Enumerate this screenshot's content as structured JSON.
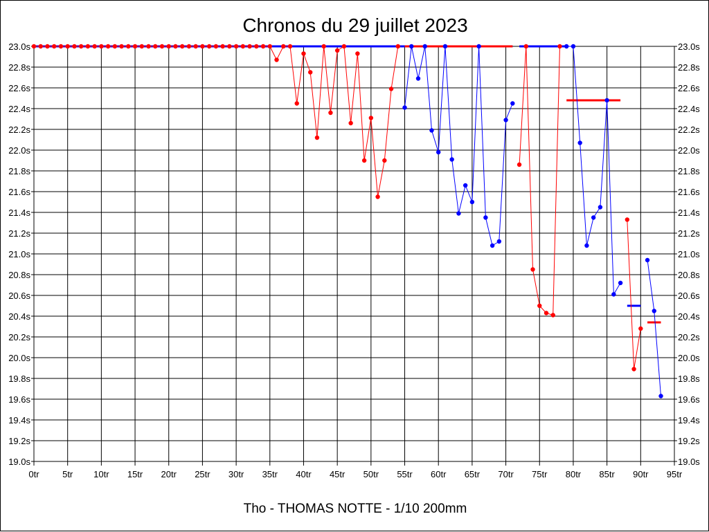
{
  "chart_data": {
    "type": "line",
    "title": "Chronos du 29 juillet 2023",
    "footer": "Tho - THOMAS NOTTE - 1/10 200mm",
    "xlim": [
      0,
      95
    ],
    "ylim": [
      19.0,
      23.0
    ],
    "x_ticks": [
      {
        "value": 0,
        "label": "0tr"
      },
      {
        "value": 5,
        "label": "5tr"
      },
      {
        "value": 10,
        "label": "10tr"
      },
      {
        "value": 15,
        "label": "15tr"
      },
      {
        "value": 20,
        "label": "20tr"
      },
      {
        "value": 25,
        "label": "25tr"
      },
      {
        "value": 30,
        "label": "30tr"
      },
      {
        "value": 35,
        "label": "35tr"
      },
      {
        "value": 40,
        "label": "40tr"
      },
      {
        "value": 45,
        "label": "45tr"
      },
      {
        "value": 50,
        "label": "50tr"
      },
      {
        "value": 55,
        "label": "55tr"
      },
      {
        "value": 60,
        "label": "60tr"
      },
      {
        "value": 65,
        "label": "65tr"
      },
      {
        "value": 70,
        "label": "70tr"
      },
      {
        "value": 75,
        "label": "75tr"
      },
      {
        "value": 80,
        "label": "80tr"
      },
      {
        "value": 85,
        "label": "85tr"
      },
      {
        "value": 90,
        "label": "90tr"
      },
      {
        "value": 95,
        "label": "95tr"
      }
    ],
    "y_ticks": [
      {
        "value": 23.0,
        "label": "23.0s"
      },
      {
        "value": 22.8,
        "label": "22.8s"
      },
      {
        "value": 22.6,
        "label": "22.6s"
      },
      {
        "value": 22.4,
        "label": "22.4s"
      },
      {
        "value": 22.2,
        "label": "22.2s"
      },
      {
        "value": 22.0,
        "label": "22.0s"
      },
      {
        "value": 21.8,
        "label": "21.8s"
      },
      {
        "value": 21.6,
        "label": "21.6s"
      },
      {
        "value": 21.4,
        "label": "21.4s"
      },
      {
        "value": 21.2,
        "label": "21.2s"
      },
      {
        "value": 21.0,
        "label": "21.0s"
      },
      {
        "value": 20.8,
        "label": "20.8s"
      },
      {
        "value": 20.6,
        "label": "20.6s"
      },
      {
        "value": 20.4,
        "label": "20.4s"
      },
      {
        "value": 20.2,
        "label": "20.2s"
      },
      {
        "value": 20.0,
        "label": "20.0s"
      },
      {
        "value": 19.8,
        "label": "19.8s"
      },
      {
        "value": 19.6,
        "label": "19.6s"
      },
      {
        "value": 19.4,
        "label": "19.4s"
      },
      {
        "value": 19.2,
        "label": "19.2s"
      },
      {
        "value": 19.0,
        "label": "19.0s"
      }
    ],
    "grid": true,
    "segments": [
      {
        "color": "#ff0000",
        "points": [
          [
            0,
            23.0
          ],
          [
            1,
            23.0
          ],
          [
            2,
            23.0
          ],
          [
            3,
            23.0
          ],
          [
            4,
            23.0
          ],
          [
            5,
            23.0
          ],
          [
            6,
            23.0
          ],
          [
            7,
            23.0
          ],
          [
            8,
            23.0
          ],
          [
            9,
            23.0
          ],
          [
            10,
            23.0
          ],
          [
            11,
            23.0
          ],
          [
            12,
            23.0
          ],
          [
            13,
            23.0
          ],
          [
            14,
            23.0
          ],
          [
            15,
            23.0
          ],
          [
            16,
            23.0
          ],
          [
            17,
            23.0
          ],
          [
            18,
            23.0
          ],
          [
            19,
            23.0
          ],
          [
            20,
            23.0
          ],
          [
            21,
            23.0
          ],
          [
            22,
            23.0
          ],
          [
            23,
            23.0
          ],
          [
            24,
            23.0
          ],
          [
            25,
            23.0
          ],
          [
            26,
            23.0
          ],
          [
            27,
            23.0
          ],
          [
            28,
            23.0
          ],
          [
            29,
            23.0
          ],
          [
            30,
            23.0
          ],
          [
            31,
            23.0
          ],
          [
            32,
            23.0
          ],
          [
            33,
            23.0
          ],
          [
            34,
            23.0
          ],
          [
            35,
            23.0
          ],
          [
            36,
            22.87
          ],
          [
            37,
            23.0
          ],
          [
            38,
            23.0
          ],
          [
            39,
            22.45
          ],
          [
            40,
            22.93
          ],
          [
            41,
            22.75
          ],
          [
            42,
            22.12
          ],
          [
            43,
            23.0
          ],
          [
            44,
            22.36
          ],
          [
            45,
            22.96
          ],
          [
            46,
            23.0
          ],
          [
            47,
            22.26
          ],
          [
            48,
            22.93
          ],
          [
            49,
            21.9
          ],
          [
            50,
            22.31
          ],
          [
            51,
            21.55
          ],
          [
            52,
            21.9
          ],
          [
            53,
            22.59
          ],
          [
            54,
            23.0
          ]
        ]
      },
      {
        "color": "#0000ff",
        "points": [
          [
            55,
            22.41
          ],
          [
            56,
            23.0
          ],
          [
            57,
            22.69
          ],
          [
            58,
            23.0
          ],
          [
            59,
            22.19
          ],
          [
            60,
            21.98
          ],
          [
            61,
            23.0
          ],
          [
            62,
            21.91
          ],
          [
            63,
            21.39
          ],
          [
            64,
            21.66
          ],
          [
            65,
            21.5
          ],
          [
            66,
            23.0
          ],
          [
            67,
            21.35
          ],
          [
            68,
            21.08
          ],
          [
            69,
            21.12
          ],
          [
            70,
            22.29
          ],
          [
            71,
            22.45
          ]
        ]
      },
      {
        "color": "#ff0000",
        "points": [
          [
            72,
            21.86
          ],
          [
            73,
            23.0
          ],
          [
            74,
            20.85
          ],
          [
            75,
            20.5
          ],
          [
            76,
            20.43
          ],
          [
            77,
            20.41
          ],
          [
            78,
            23.0
          ]
        ]
      },
      {
        "color": "#0000ff",
        "points": [
          [
            79,
            23.0
          ],
          [
            80,
            23.0
          ],
          [
            81,
            22.07
          ],
          [
            82,
            21.08
          ],
          [
            83,
            21.35
          ],
          [
            84,
            21.45
          ],
          [
            85,
            22.48
          ],
          [
            86,
            20.61
          ],
          [
            87,
            20.72
          ]
        ]
      },
      {
        "color": "#ff0000",
        "points": [
          [
            88,
            21.33
          ],
          [
            89,
            19.89
          ],
          [
            90,
            20.28
          ]
        ]
      },
      {
        "color": "#0000ff",
        "points": [
          [
            91,
            20.94
          ],
          [
            92,
            20.45
          ],
          [
            93,
            19.63
          ]
        ]
      }
    ],
    "reference_lines": [
      {
        "color": "#0000ff",
        "x": [
          0,
          71
        ],
        "y": 23.0
      },
      {
        "color": "#ff0000",
        "x": [
          55,
          71
        ],
        "y": 23.0
      },
      {
        "color": "#0000ff",
        "x": [
          72,
          79
        ],
        "y": 23.0
      },
      {
        "color": "#ff0000",
        "x": [
          79,
          87
        ],
        "y": 22.48
      },
      {
        "color": "#0000ff",
        "x": [
          88,
          90
        ],
        "y": 20.5
      },
      {
        "color": "#ff0000",
        "x": [
          91,
          93
        ],
        "y": 20.34
      }
    ]
  }
}
